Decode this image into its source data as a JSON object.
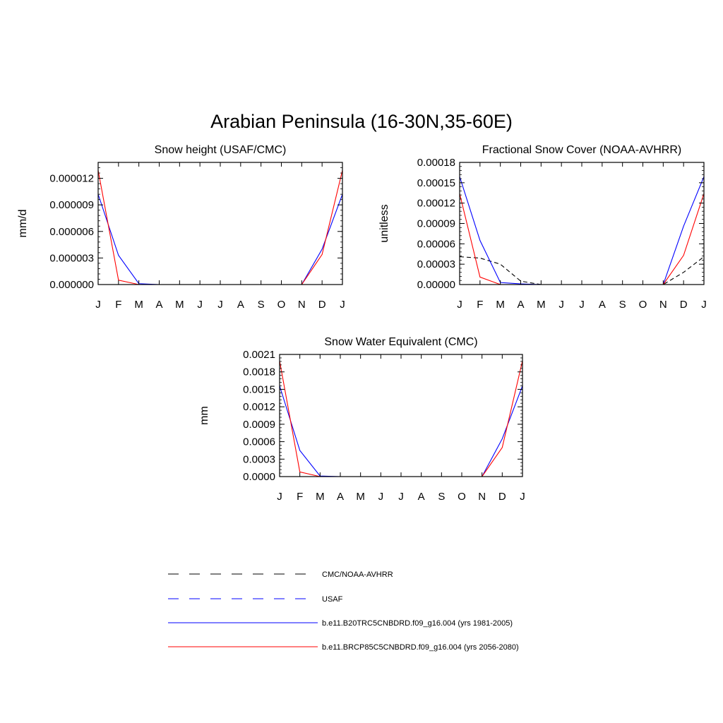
{
  "figure": {
    "title": "Arabian Peninsula (16-30N,35-60E)"
  },
  "legend": {
    "entries": [
      {
        "label": "CMC/NOAA-AVHRR",
        "color": "#000000",
        "dash": true
      },
      {
        "label": "USAF",
        "color": "#0000ff",
        "dash": true
      },
      {
        "label": "b.e11.B20TRC5CNBDRD.f09_g16.004 (yrs 1981-2005)",
        "color": "#0000ff",
        "dash": false
      },
      {
        "label": "b.e11.BRCP85C5CNBDRD.f09_g16.004 (yrs 2056-2080)",
        "color": "#ff0000",
        "dash": false
      }
    ]
  },
  "chart_data": [
    {
      "type": "line",
      "title": "Snow height (USAF/CMC)",
      "xlabel": "",
      "ylabel": "mm/d",
      "categories": [
        "J",
        "F",
        "M",
        "A",
        "M",
        "J",
        "J",
        "A",
        "S",
        "O",
        "N",
        "D",
        "J"
      ],
      "ylim": [
        0,
        1.38e-05
      ],
      "yticks": [
        "0.000000",
        "0.000003",
        "0.000006",
        "0.000009",
        "0.000012"
      ],
      "ytick_values": [
        0,
        3e-06,
        6e-06,
        9e-06,
        1.2e-05
      ],
      "series": [
        {
          "name": "CMC/NOAA-AVHRR",
          "color": "#000000",
          "dash": true,
          "values": [
            0,
            0,
            0,
            0,
            0,
            0,
            0,
            0,
            0,
            0,
            0,
            0,
            0
          ]
        },
        {
          "name": "b.e11.B20TRC5CNBDRD.f09_g16.004 (yrs 1981-2005)",
          "color": "#0000ff",
          "dash": false,
          "values": [
            1.02e-05,
            3.3e-06,
            1e-07,
            0,
            0,
            0,
            0,
            0,
            0,
            0,
            0,
            4e-06,
            1.02e-05
          ]
        },
        {
          "name": "b.e11.BRCP85C5CNBDRD.f09_g16.004 (yrs 2056-2080)",
          "color": "#ff0000",
          "dash": false,
          "values": [
            1.29e-05,
            5e-07,
            0,
            0,
            0,
            0,
            0,
            0,
            0,
            0,
            0,
            3.4e-06,
            1.29e-05
          ]
        }
      ]
    },
    {
      "type": "line",
      "title": "Fractional Snow Cover (NOAA-AVHRR)",
      "xlabel": "",
      "ylabel": "unitless",
      "categories": [
        "J",
        "F",
        "M",
        "A",
        "M",
        "J",
        "J",
        "A",
        "S",
        "O",
        "N",
        "D",
        "J"
      ],
      "ylim": [
        0,
        0.00018
      ],
      "yticks": [
        "0.00000",
        "0.00003",
        "0.00006",
        "0.00009",
        "0.00012",
        "0.00015",
        "0.00018"
      ],
      "ytick_values": [
        0,
        3e-05,
        6e-05,
        9e-05,
        0.00012,
        0.00015,
        0.00018
      ],
      "series": [
        {
          "name": "CMC/NOAA-AVHRR",
          "color": "#000000",
          "dash": true,
          "values": [
            4.1e-05,
            3.9e-05,
            3e-05,
            5e-06,
            0,
            0,
            0,
            0,
            0,
            0,
            0,
            1.8e-05,
            4.1e-05
          ]
        },
        {
          "name": "b.e11.B20TRC5CNBDRD.f09_g16.004 (yrs 1981-2005)",
          "color": "#0000ff",
          "dash": false,
          "values": [
            0.000159,
            6.5e-05,
            3e-06,
            1e-06,
            0,
            0,
            0,
            0,
            0,
            0,
            0,
            8.6e-05,
            0.000159
          ]
        },
        {
          "name": "b.e11.BRCP85C5CNBDRD.f09_g16.004 (yrs 2056-2080)",
          "color": "#ff0000",
          "dash": false,
          "values": [
            0.000134,
            1.1e-05,
            0,
            0,
            0,
            0,
            0,
            0,
            0,
            0,
            0,
            4.3e-05,
            0.000134
          ]
        }
      ]
    },
    {
      "type": "line",
      "title": "Snow Water Equivalent (CMC)",
      "xlabel": "",
      "ylabel": "mm",
      "categories": [
        "J",
        "F",
        "M",
        "A",
        "M",
        "J",
        "J",
        "A",
        "S",
        "O",
        "N",
        "D",
        "J"
      ],
      "ylim": [
        0,
        0.0021
      ],
      "yticks": [
        "0.0000",
        "0.0003",
        "0.0006",
        "0.0009",
        "0.0012",
        "0.0015",
        "0.0018",
        "0.0021"
      ],
      "ytick_values": [
        0,
        0.0003,
        0.0006,
        0.0009,
        0.0012,
        0.0015,
        0.0018,
        0.0021
      ],
      "series": [
        {
          "name": "CMC/NOAA-AVHRR",
          "color": "#000000",
          "dash": true,
          "values": [
            0,
            0,
            0,
            0,
            0,
            0,
            0,
            0,
            0,
            0,
            0,
            0,
            0
          ]
        },
        {
          "name": "b.e11.B20TRC5CNBDRD.f09_g16.004 (yrs 1981-2005)",
          "color": "#0000ff",
          "dash": false,
          "values": [
            0.00156,
            0.00045,
            1e-05,
            0,
            0,
            0,
            0,
            0,
            0,
            0,
            0,
            0.00065,
            0.00156
          ]
        },
        {
          "name": "b.e11.BRCP85C5CNBDRD.f09_g16.004 (yrs 2056-2080)",
          "color": "#ff0000",
          "dash": false,
          "values": [
            0.00199,
            8e-05,
            0,
            0,
            0,
            0,
            0,
            0,
            0,
            0,
            0,
            0.0005,
            0.00199
          ]
        }
      ]
    }
  ]
}
